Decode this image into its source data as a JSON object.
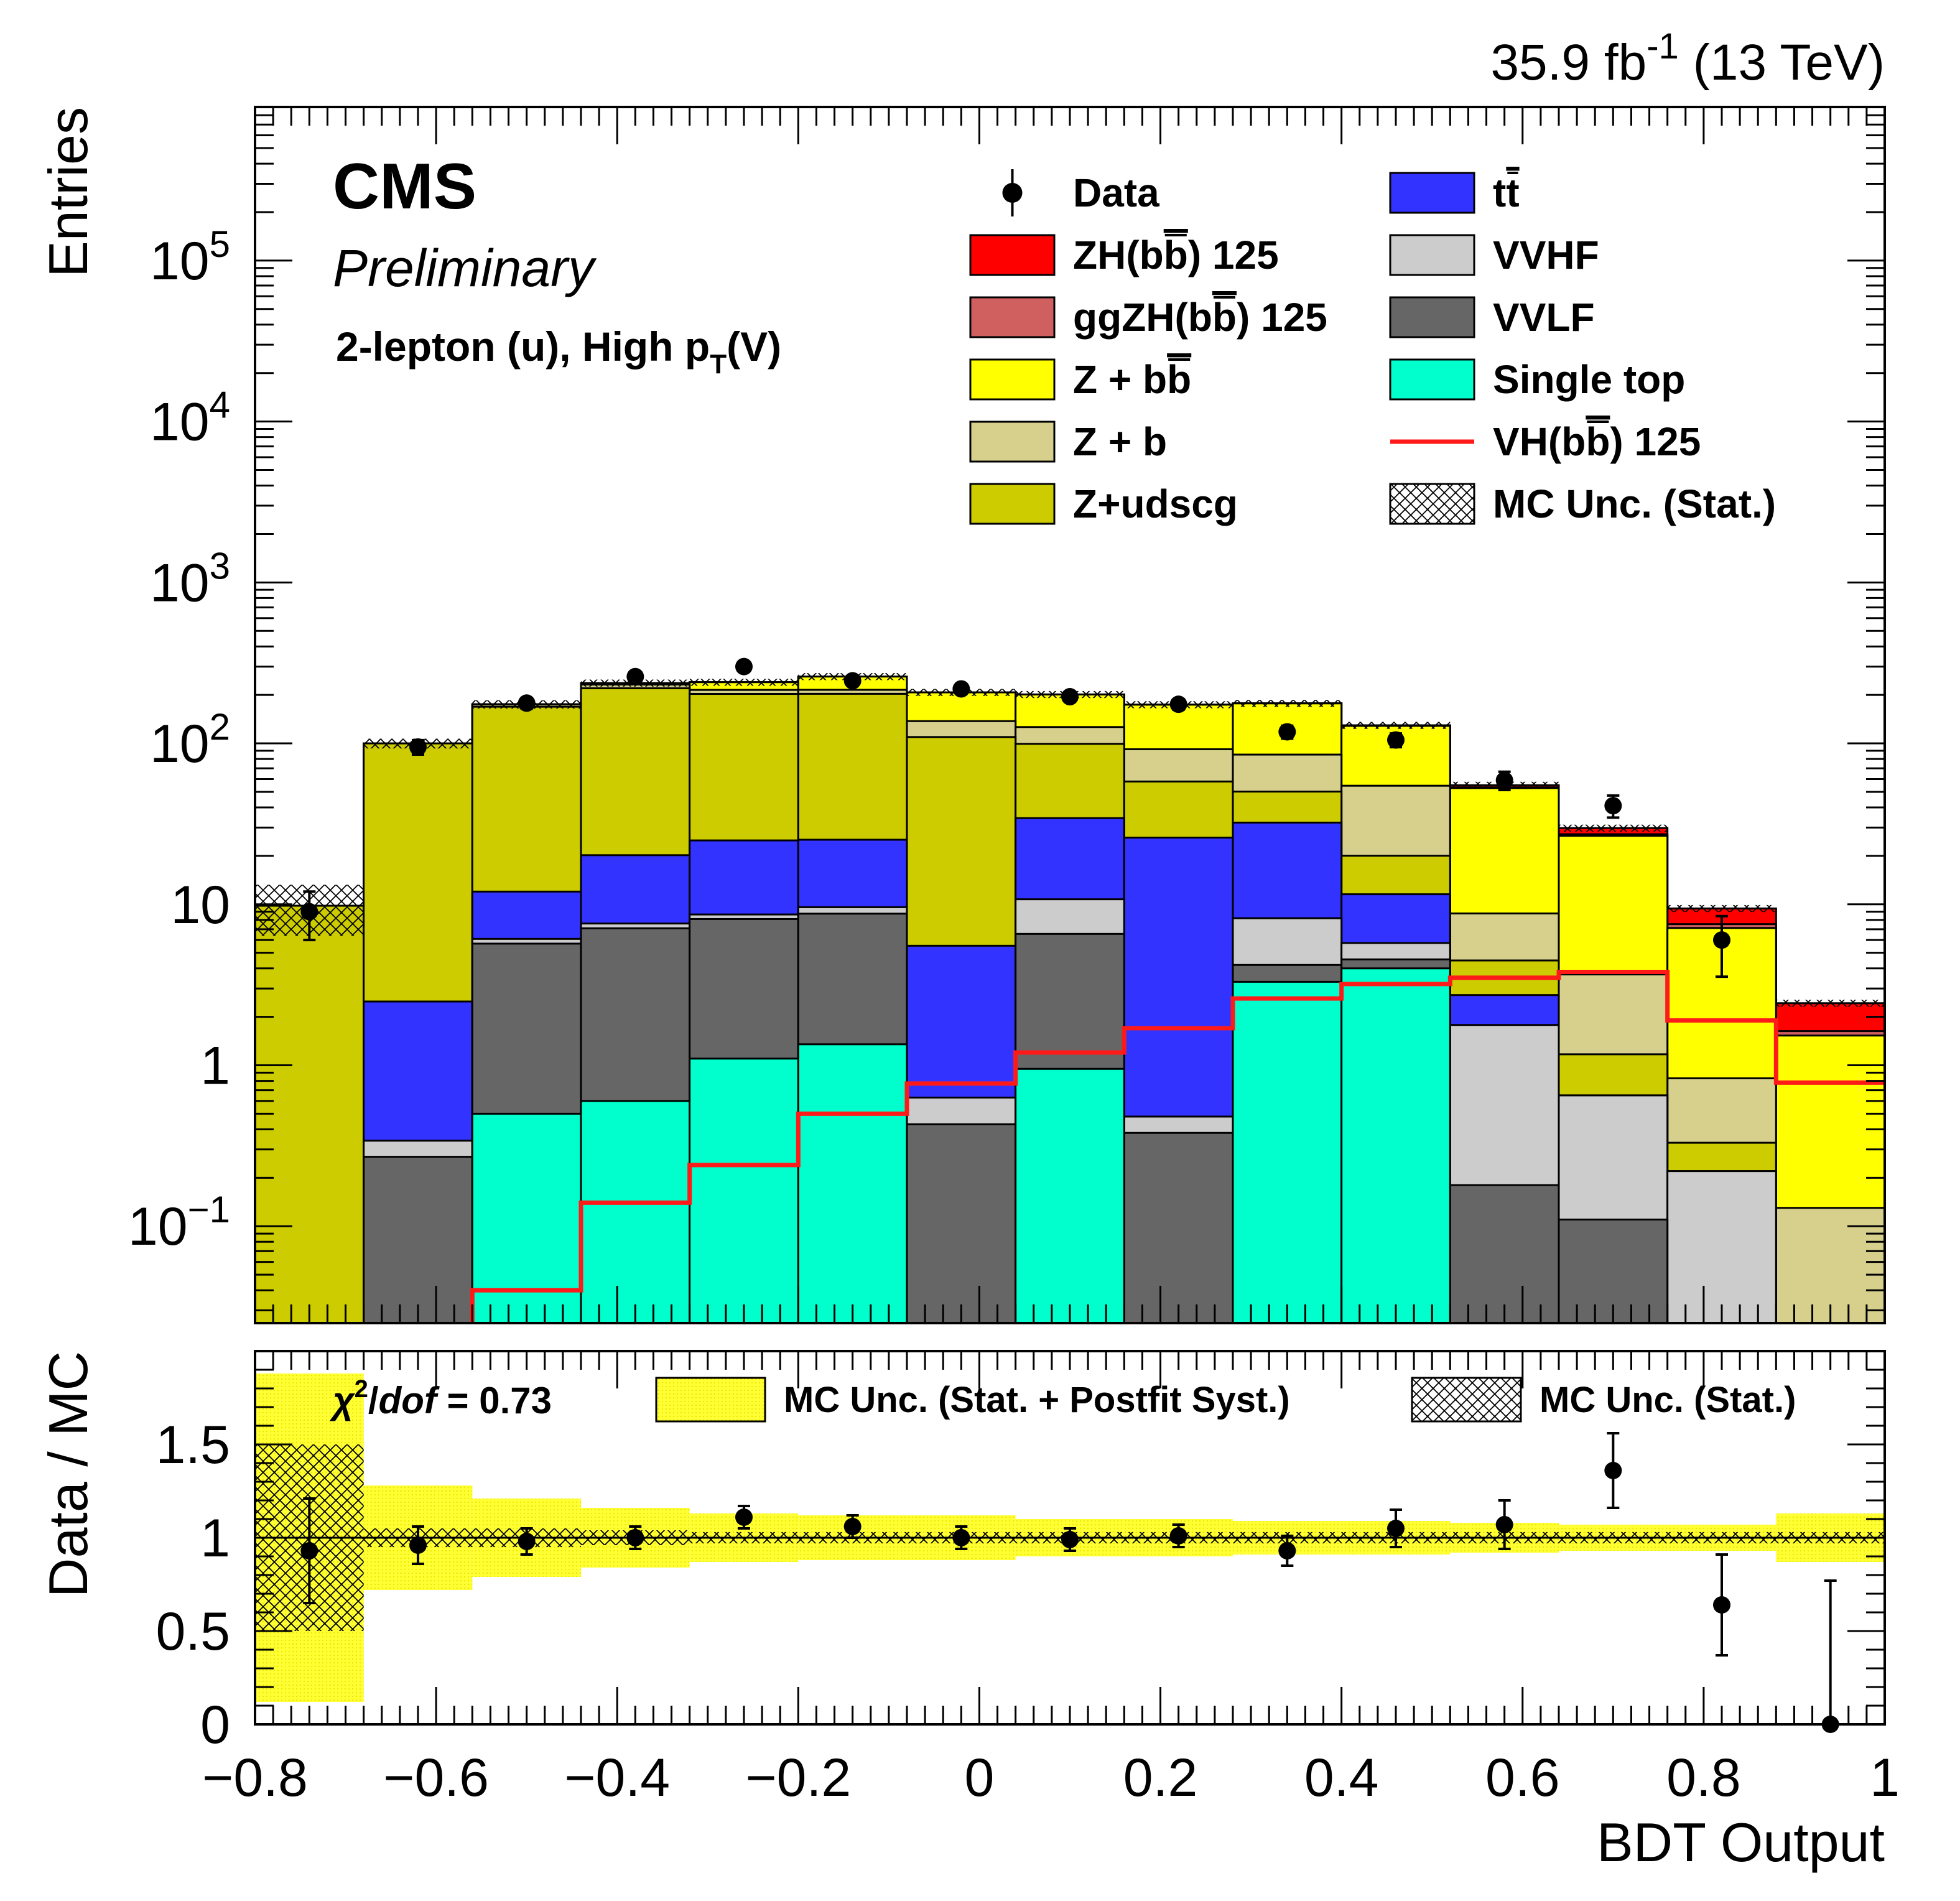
{
  "header": {
    "lumi": "35.9 fb",
    "lumi_exp": "-1",
    "energy": "(13 TeV)",
    "experiment": "CMS",
    "status": "Preliminary",
    "category_pre": "2-lepton (u), High p",
    "category_sub": "T",
    "category_post": "(V)",
    "chi2_sym": "χ",
    "chi2_exp": "2",
    "chi2_slash": "/",
    "chi2_dof": "dof",
    "chi2_val": " = 0.73"
  },
  "colors": {
    "zh": "#ff0000",
    "ggzh": "#d06060",
    "zbb": "#ffff00",
    "zb": "#d6d08c",
    "zudscg": "#cccc00",
    "tt": "#3333ff",
    "vvhf": "#cccccc",
    "vvlf": "#666666",
    "st": "#00ffcc",
    "vh_line": "#ff1a1a",
    "band": "#ffff33"
  },
  "chart_data": {
    "type": "bar",
    "stacked": true,
    "xlabel": "BDT Output",
    "ylabel_top": "Entries",
    "ylabel_bottom": "Data / MC",
    "xlim": [
      -0.8,
      1.0
    ],
    "ylim_top": [
      0.025,
      900000
    ],
    "yscale_top": "log",
    "ylim_bottom": [
      0,
      2
    ],
    "bin_edges": [
      -0.8,
      -0.68,
      -0.56,
      -0.44,
      -0.32,
      -0.2,
      -0.08,
      0.04,
      0.16,
      0.28,
      0.4,
      0.52,
      0.64,
      0.76,
      0.88,
      1.0
    ],
    "x_ticks": [
      {
        "v": -0.8,
        "label": "−0.8"
      },
      {
        "v": -0.6,
        "label": "−0.6"
      },
      {
        "v": -0.4,
        "label": "−0.4"
      },
      {
        "v": -0.2,
        "label": "−0.2"
      },
      {
        "v": 0,
        "label": "0"
      },
      {
        "v": 0.2,
        "label": "0.2"
      },
      {
        "v": 0.4,
        "label": "0.4"
      },
      {
        "v": 0.6,
        "label": "0.6"
      },
      {
        "v": 0.8,
        "label": "0.8"
      },
      {
        "v": 1.0,
        "label": "1"
      }
    ],
    "y_ticks_top": [
      {
        "v": 0.1,
        "base": "10",
        "exp": "−1"
      },
      {
        "v": 1,
        "base": "1",
        "exp": ""
      },
      {
        "v": 10,
        "base": "10",
        "exp": ""
      },
      {
        "v": 100,
        "base": "10",
        "exp": "2"
      },
      {
        "v": 1000,
        "base": "10",
        "exp": "3"
      },
      {
        "v": 10000,
        "base": "10",
        "exp": "4"
      },
      {
        "v": 100000,
        "base": "10",
        "exp": "5"
      }
    ],
    "y_ticks_bottom": [
      {
        "v": 0,
        "label": "0"
      },
      {
        "v": 0.5,
        "label": "0.5"
      },
      {
        "v": 1,
        "label": "1"
      },
      {
        "v": 1.5,
        "label": "1.5"
      }
    ],
    "stack_order": [
      "st",
      "vvlf",
      "vvhf",
      "tt",
      "zudscg",
      "zb",
      "zbb",
      "ggzh",
      "zh"
    ],
    "series": [
      {
        "key": "st",
        "name": "Single top",
        "values": [
          0,
          0,
          0.5,
          0.6,
          1.1,
          1.35,
          0,
          0.95,
          0,
          3.3,
          4.0,
          0,
          0,
          0,
          0
        ]
      },
      {
        "key": "vvlf",
        "name": "VVLF",
        "values": [
          0,
          0.27,
          5.2,
          6.5,
          7.0,
          7.4,
          0.43,
          5.6,
          0.38,
          0.9,
          0.55,
          0.18,
          0.11,
          0,
          0
        ]
      },
      {
        "key": "vvhf",
        "name": "VVHF",
        "values": [
          0,
          0.07,
          0.4,
          0.5,
          0.55,
          0.85,
          0.2,
          4.2,
          0.1,
          4.0,
          1.2,
          1.6,
          0.54,
          0.22,
          0
        ]
      },
      {
        "key": "tt",
        "name": "tt",
        "values": [
          0,
          2.15,
          5.9,
          12.6,
          16.3,
          15.6,
          4.9,
          23.6,
          25.5,
          24.0,
          5.8,
          0.95,
          0,
          0,
          0
        ]
      },
      {
        "key": "zudscg",
        "name": "Z+udscg",
        "values": [
          9.8,
          97.5,
          157.0,
          200.0,
          178.0,
          178.0,
          104.0,
          65.0,
          32.0,
          18.0,
          8.5,
          1.75,
          0.52,
          0.11,
          0
        ]
      },
      {
        "key": "zb",
        "name": "Z + b",
        "values": [
          0,
          0,
          6.0,
          12.0,
          12.0,
          12.0,
          28.0,
          27.0,
          34.0,
          35.0,
          34.5,
          4.3,
          2.5,
          0.5,
          0.13
        ]
      },
      {
        "key": "zbb",
        "name": "Z + bb",
        "values": [
          0,
          0,
          0,
          5.0,
          25.0,
          45.0,
          70.0,
          75.0,
          82.0,
          92.0,
          74.0,
          44.0,
          23.0,
          6.3,
          1.4
        ]
      },
      {
        "key": "ggzh",
        "name": "ggZH(bb) 125",
        "values": [
          0,
          0,
          0,
          0,
          0,
          0,
          0,
          0,
          0,
          0.1,
          0.2,
          0.5,
          0.6,
          0.4,
          0.1
        ]
      },
      {
        "key": "zh",
        "name": "ZH(bb) 125",
        "values": [
          0,
          0,
          0,
          0,
          0,
          0,
          0,
          0.05,
          0.1,
          0.3,
          0.8,
          1.7,
          2.5,
          1.9,
          0.8
        ]
      }
    ],
    "vh_line": {
      "name": "VH(bb) 125",
      "values": [
        0,
        0,
        0.04,
        0.14,
        0.24,
        0.5,
        0.77,
        1.2,
        1.7,
        2.6,
        3.2,
        3.5,
        3.8,
        1.9,
        0.78
      ]
    },
    "data": {
      "name": "Data",
      "x": [
        -0.74,
        -0.62,
        -0.5,
        -0.38,
        -0.26,
        -0.14,
        -0.02,
        0.1,
        0.22,
        0.34,
        0.46,
        0.58,
        0.7,
        0.82
      ],
      "y": [
        9,
        95,
        178,
        260,
        300,
        245,
        218,
        195,
        175,
        118,
        105,
        59,
        41,
        6
      ]
    },
    "ratio": {
      "x": [
        -0.74,
        -0.62,
        -0.5,
        -0.38,
        -0.26,
        -0.14,
        -0.02,
        0.1,
        0.22,
        0.34,
        0.46,
        0.58,
        0.7,
        0.82,
        0.94
      ],
      "y": [
        0.93,
        0.96,
        0.98,
        1.0,
        1.11,
        1.06,
        1.0,
        0.99,
        1.01,
        0.93,
        1.05,
        1.07,
        1.36,
        0.64,
        0.0
      ],
      "err_lo": [
        0.28,
        0.1,
        0.07,
        0.06,
        0.06,
        0.06,
        0.06,
        0.06,
        0.06,
        0.08,
        0.1,
        0.13,
        0.2,
        0.27,
        0.0
      ],
      "err_hi": [
        0.28,
        0.1,
        0.07,
        0.06,
        0.06,
        0.06,
        0.06,
        0.06,
        0.06,
        0.08,
        0.1,
        0.13,
        0.2,
        0.27,
        0.77
      ],
      "band_full": [
        0.88,
        0.28,
        0.21,
        0.16,
        0.13,
        0.12,
        0.12,
        0.1,
        0.1,
        0.09,
        0.09,
        0.08,
        0.07,
        0.07,
        0.13
      ],
      "band_stat": [
        0.5,
        0.05,
        0.05,
        0.04,
        0.03,
        0.03,
        0.03,
        0.03,
        0.03,
        0.03,
        0.03,
        0.03,
        0.03,
        0.03,
        0.03
      ]
    },
    "mc_stat_rel_top": [
      0.35,
      0.07,
      0.06,
      0.05,
      0.05,
      0.05,
      0.05,
      0.05,
      0.05,
      0.05,
      0.05,
      0.05,
      0.05,
      0.05,
      0.05
    ],
    "legend_top": [
      {
        "kind": "marker",
        "label": "Data"
      },
      {
        "kind": "fill",
        "key": "zh",
        "label": "ZH(b",
        "bar": "b",
        "post": ") 125"
      },
      {
        "kind": "fill",
        "key": "ggzh",
        "label": "ggZH(b",
        "bar": "b",
        "post": ") 125"
      },
      {
        "kind": "fill",
        "key": "zbb",
        "label": "Z + b",
        "bar": "b",
        "post": ""
      },
      {
        "kind": "fill",
        "key": "zb",
        "label": "Z + b",
        "bar": "",
        "post": ""
      },
      {
        "kind": "fill",
        "key": "zudscg",
        "label": "Z+udscg",
        "bar": "",
        "post": ""
      },
      {
        "kind": "fill",
        "key": "tt",
        "label": "t",
        "bar": "t",
        "post": ""
      },
      {
        "kind": "fill",
        "key": "vvhf",
        "label": "VVHF",
        "bar": "",
        "post": ""
      },
      {
        "kind": "fill",
        "key": "vvlf",
        "label": "VVLF",
        "bar": "",
        "post": ""
      },
      {
        "kind": "fill",
        "key": "st",
        "label": "Single top",
        "bar": "",
        "post": ""
      },
      {
        "kind": "line",
        "label": "VH(b",
        "bar": "b",
        "post": ") 125"
      },
      {
        "kind": "hatch",
        "label": "MC Unc. (Stat.)",
        "bar": "",
        "post": ""
      }
    ],
    "legend_bottom": [
      {
        "kind": "band",
        "label": "MC Unc. (Stat. + Postfit Syst.)"
      },
      {
        "kind": "hatch",
        "label": "MC Unc. (Stat.)"
      }
    ]
  }
}
